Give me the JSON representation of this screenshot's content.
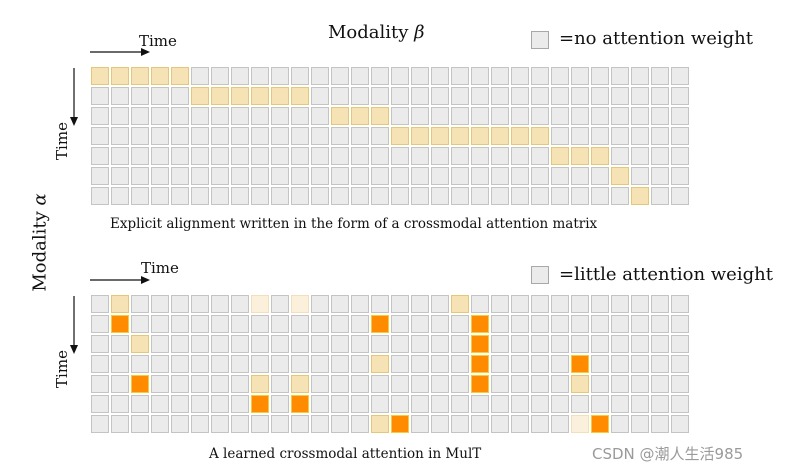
{
  "top": {
    "title_name": "Modality",
    "title_symbol": "β",
    "time_label": "Time",
    "legend_label": "=no attention weight",
    "caption": "Explicit alignment written in the form of a crossmodal attention matrix",
    "rows": [
      "LLLLLEEEEEEEEEEEEEEEEEEEEEEEEE",
      "EEEEELLLLLLEEEEEEEEEEEEEEEEEEE",
      "EEEEEEEEEEEELLLEEEEEEEEEEEEEEE",
      "EEEEEEEEEEEEEEELLLLLLLLEEEEEEE",
      "EEEEEEEEEEEEEEEEEEEEEEELLLEEEE",
      "EEEEEEEEEEEEEEEEEEEEEEEEEELEEE",
      "EEEEEEEEEEEEEEEEEEEEEEEEEEELEE"
    ]
  },
  "bottom": {
    "time_label": "Time",
    "legend_label": "=little attention weight",
    "caption": "A learned crossmodal attention in MulT",
    "rows": [
      "ELEEEEEEVEVEEEEEEELEEEEEEEEEEE",
      "ESEEEEEEEEEEEESEEEESEEEEEEEEEE",
      "EELEEEEEEEEEEEEEEEESEEEEEEEEEE",
      "EEEEEEEEEEEEEELEEEESEEEESEEEEE",
      "EESEEEEELELEEEEEEEESEEEELEEEEE",
      "EEEEEEEESESEEEEEEEEEEEEEEEEEEE",
      "EEEEEEEEEEEEEELSEEEEEEEEVSEEEE"
    ]
  },
  "side_label": {
    "name": "Modality",
    "symbol": "α"
  },
  "colors": {
    "empty": "#ebebeb",
    "light": "#f5e3b5",
    "strong": "#ff8c00"
  },
  "watermark": "CSDN @潮人生活985"
}
